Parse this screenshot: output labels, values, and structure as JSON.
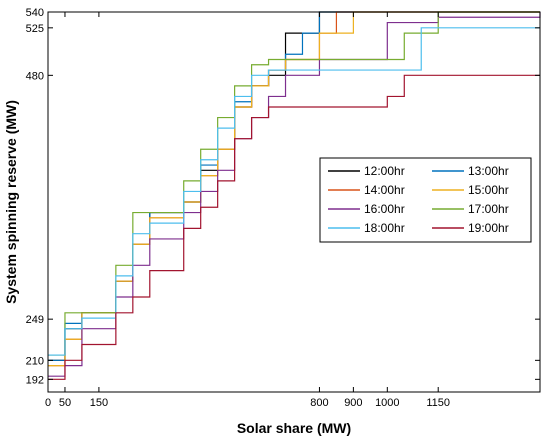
{
  "chart_data": {
    "type": "line",
    "xlabel": "Solar share (MW)",
    "ylabel": "System spinning reserve (MW)",
    "xlim": [
      0,
      1450
    ],
    "ylim": [
      180,
      540
    ],
    "xticks": [
      0,
      50,
      150,
      800,
      900,
      1000,
      1150
    ],
    "xtick_labels": [
      "0",
      "50",
      "150",
      "800",
      "900",
      "1000",
      "1150"
    ],
    "xtick_label_values": [
      0,
      50,
      150,
      800,
      900,
      1000,
      1150
    ],
    "yticks": [
      192,
      210,
      249,
      480,
      525,
      540
    ],
    "ytick_labels": [
      "192",
      "210",
      "249",
      "480",
      "525",
      "540"
    ],
    "legend_position": "middle-right",
    "grid": false,
    "series": [
      {
        "name": "12:00hr",
        "color": "#000000",
        "x": [
          0,
          50,
          100,
          150,
          200,
          250,
          300,
          350,
          400,
          450,
          500,
          550,
          600,
          650,
          700,
          750,
          800,
          1450
        ],
        "y": [
          210,
          240,
          255,
          255,
          285,
          320,
          350,
          350,
          360,
          390,
          410,
          450,
          470,
          480,
          520,
          520,
          540,
          540
        ]
      },
      {
        "name": "13:00hr",
        "color": "#0072BD",
        "x": [
          0,
          50,
          100,
          150,
          200,
          250,
          300,
          350,
          400,
          450,
          500,
          550,
          600,
          650,
          700,
          750,
          800,
          850,
          1450
        ],
        "y": [
          210,
          245,
          255,
          255,
          285,
          320,
          350,
          350,
          360,
          395,
          410,
          455,
          470,
          485,
          500,
          520,
          540,
          540,
          540
        ]
      },
      {
        "name": "14:00hr",
        "color": "#D95319",
        "x": [
          0,
          50,
          100,
          150,
          200,
          250,
          300,
          350,
          400,
          450,
          500,
          550,
          600,
          650,
          700,
          750,
          800,
          850,
          1450
        ],
        "y": [
          205,
          230,
          255,
          255,
          285,
          320,
          345,
          345,
          360,
          385,
          410,
          450,
          470,
          485,
          495,
          495,
          520,
          540,
          540
        ]
      },
      {
        "name": "15:00hr",
        "color": "#EDB120",
        "x": [
          0,
          50,
          100,
          150,
          200,
          250,
          300,
          350,
          400,
          450,
          500,
          550,
          600,
          650,
          700,
          750,
          800,
          850,
          900,
          1450
        ],
        "y": [
          205,
          230,
          255,
          255,
          285,
          320,
          345,
          345,
          360,
          385,
          410,
          450,
          470,
          485,
          495,
          495,
          520,
          520,
          540,
          540
        ]
      },
      {
        "name": "16:00hr",
        "color": "#7E2F8E",
        "x": [
          0,
          50,
          100,
          150,
          200,
          250,
          300,
          350,
          400,
          450,
          500,
          550,
          600,
          650,
          700,
          750,
          800,
          850,
          900,
          1000,
          1150,
          1450
        ],
        "y": [
          195,
          205,
          240,
          240,
          270,
          300,
          325,
          325,
          350,
          370,
          390,
          420,
          440,
          460,
          480,
          480,
          495,
          495,
          495,
          530,
          535,
          540
        ]
      },
      {
        "name": "17:00hr",
        "color": "#77AC30",
        "x": [
          0,
          50,
          100,
          150,
          200,
          250,
          300,
          350,
          400,
          450,
          500,
          550,
          600,
          650,
          700,
          1050,
          1150,
          1450
        ],
        "y": [
          215,
          255,
          255,
          255,
          300,
          350,
          350,
          350,
          380,
          410,
          440,
          470,
          490,
          495,
          495,
          520,
          540,
          540
        ]
      },
      {
        "name": "18:00hr",
        "color": "#4DBEEE",
        "x": [
          0,
          50,
          100,
          150,
          200,
          250,
          300,
          350,
          400,
          450,
          500,
          550,
          600,
          650,
          1050,
          1100,
          1450
        ],
        "y": [
          215,
          240,
          250,
          250,
          290,
          330,
          340,
          340,
          370,
          400,
          430,
          460,
          480,
          485,
          485,
          525,
          525
        ]
      },
      {
        "name": "19:00hr",
        "color": "#A2142F",
        "x": [
          0,
          50,
          100,
          150,
          200,
          250,
          300,
          350,
          400,
          450,
          500,
          550,
          600,
          650,
          1000,
          1050,
          1450
        ],
        "y": [
          192,
          210,
          225,
          225,
          255,
          270,
          295,
          295,
          335,
          355,
          380,
          420,
          440,
          450,
          460,
          480,
          480
        ]
      }
    ]
  }
}
